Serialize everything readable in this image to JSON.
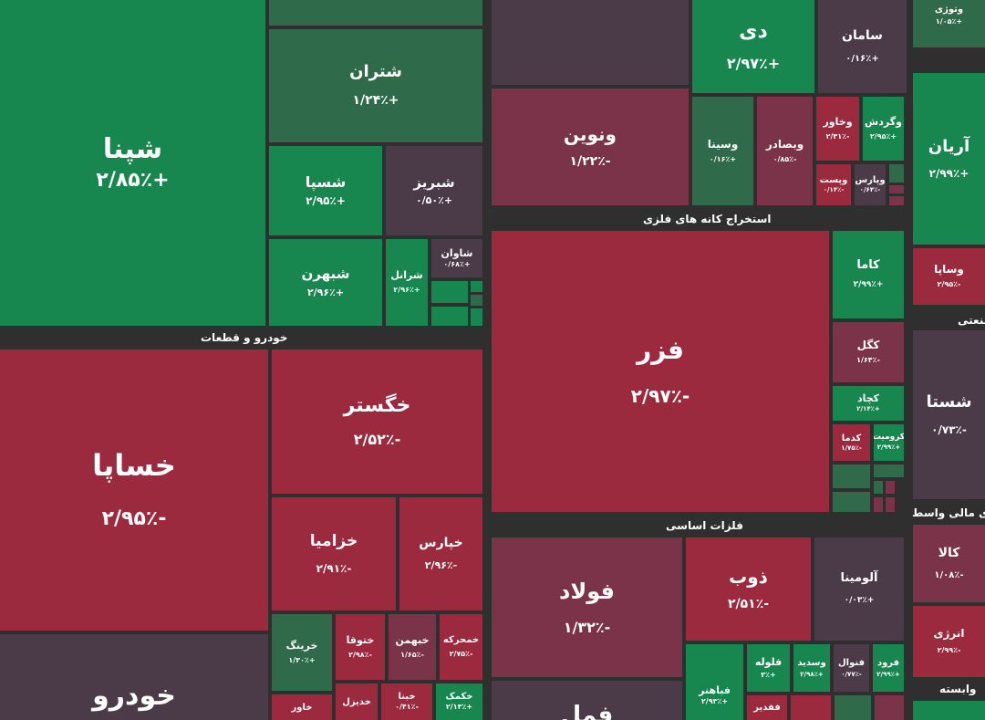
{
  "sections": {
    "auto": "خودرو و قطعات",
    "mining": "استخراج کانه های فلزی",
    "metals": "فلزات اساسی",
    "industry": "صنعتی",
    "financial": "های مالی واسط",
    "affiliated": "وابسته"
  },
  "tiles": {
    "shapna": {
      "name": "شپنا",
      "pct": "+۲/۸۵٪"
    },
    "shetran": {
      "name": "شتران",
      "pct": "+۱/۲۴٪"
    },
    "shespa": {
      "name": "شسپا",
      "pct": "+۲/۹۵٪"
    },
    "shabriz": {
      "name": "شبریز",
      "pct": "+۰/۵۰٪"
    },
    "shebahran": {
      "name": "شبهرن",
      "pct": "+۲/۹۶٪"
    },
    "sharanol": {
      "name": "شرانل",
      "pct": "+۲/۹۶٪"
    },
    "shavan": {
      "name": "شاوان",
      "pct": "+۰/۶۸٪"
    },
    "khesapa": {
      "name": "خساپا",
      "pct": "-۲/۹۵٪"
    },
    "khodro": {
      "name": "خودرو"
    },
    "khegostar": {
      "name": "خگستر",
      "pct": "-۲/۵۲٪"
    },
    "khazamia": {
      "name": "خزامیا",
      "pct": "-۲/۹۱٪"
    },
    "khepars": {
      "name": "خپارس",
      "pct": "-۲/۹۶٪"
    },
    "kharing": {
      "name": "خرینگ",
      "pct": "+۱/۳۰٪"
    },
    "khatoga": {
      "name": "ختوقا",
      "pct": "-۲/۹۸٪"
    },
    "khebahman": {
      "name": "خبهمن",
      "pct": "-۱/۶۵٪"
    },
    "khamhreke": {
      "name": "خمحرکه",
      "pct": "-۲/۷۵٪"
    },
    "khavar": {
      "name": "خاور"
    },
    "khodizel": {
      "name": "خدیزل"
    },
    "khabna": {
      "name": "خبنا",
      "pct": "-۰/۴۱٪"
    },
    "khakamak": {
      "name": "خکمک",
      "pct": "+۲/۱۳٪"
    },
    "di": {
      "name": "دی",
      "pct": "+۲/۹۷٪"
    },
    "saman": {
      "name": "سامان",
      "pct": "+۰/۱۶٪"
    },
    "vanovin": {
      "name": "ونوین",
      "pct": "-۱/۲۲٪"
    },
    "vasina": {
      "name": "وسینا",
      "pct": "+۰/۱۶٪"
    },
    "vabsadar": {
      "name": "وبصادر",
      "pct": "-۰/۸۵٪"
    },
    "vakhavar": {
      "name": "وخاور",
      "pct": "-۲/۳۱٪"
    },
    "vagardesh": {
      "name": "وگردش",
      "pct": "+۲/۹۵٪"
    },
    "vapast": {
      "name": "وپست",
      "pct": "-۰/۱۴٪"
    },
    "vapars": {
      "name": "وپارس",
      "pct": "-۰/۶۴٪"
    },
    "fazar": {
      "name": "فزر",
      "pct": "-۲/۹۷٪"
    },
    "kama": {
      "name": "کاما",
      "pct": "+۲/۹۹٪"
    },
    "kegol": {
      "name": "کگل",
      "pct": "-۱/۶۴٪"
    },
    "kechad": {
      "name": "کچاد",
      "pct": "+۲/۱۴٪"
    },
    "kadama": {
      "name": "کدما",
      "pct": "-۱/۷۵٪"
    },
    "kromit": {
      "name": "کرومیت",
      "pct": "+۲/۹۹٪"
    },
    "foolad": {
      "name": "فولاد",
      "pct": "-۱/۳۲٪"
    },
    "foolad_partial": {
      "name": "فمل"
    },
    "zob": {
      "name": "ذوب",
      "pct": "-۲/۵۱٪"
    },
    "alumina": {
      "name": "آلومینا",
      "pct": "+۰/۰۳٪"
    },
    "fabahar": {
      "name": "فباهنر",
      "pct": "+۲/۹۳٪"
    },
    "faloole": {
      "name": "فلوله",
      "pct": "+۳٪"
    },
    "vasedid": {
      "name": "وسدید",
      "pct": "+۲/۹۸٪"
    },
    "fanval": {
      "name": "فنوال",
      "pct": "-۰/۷۷٪"
    },
    "forood": {
      "name": "فرود",
      "pct": "+۲/۹۹٪"
    },
    "fafedir": {
      "name": "ففدیر"
    },
    "arian": {
      "name": "آریان",
      "pct": "+۲/۹۹٪"
    },
    "vasapa": {
      "name": "وساپا",
      "pct": "-۲/۹۵٪"
    },
    "shasta": {
      "name": "شستا",
      "pct": "-۰/۷۳٪"
    },
    "kala": {
      "name": "کالا",
      "pct": "-۱/۰۸٪"
    },
    "anarzi": {
      "name": "انرژی",
      "pct": "-۲/۹۹٪"
    },
    "topright": {
      "name": "وتوژی",
      "pct": "+۱/۰۵٪"
    }
  }
}
